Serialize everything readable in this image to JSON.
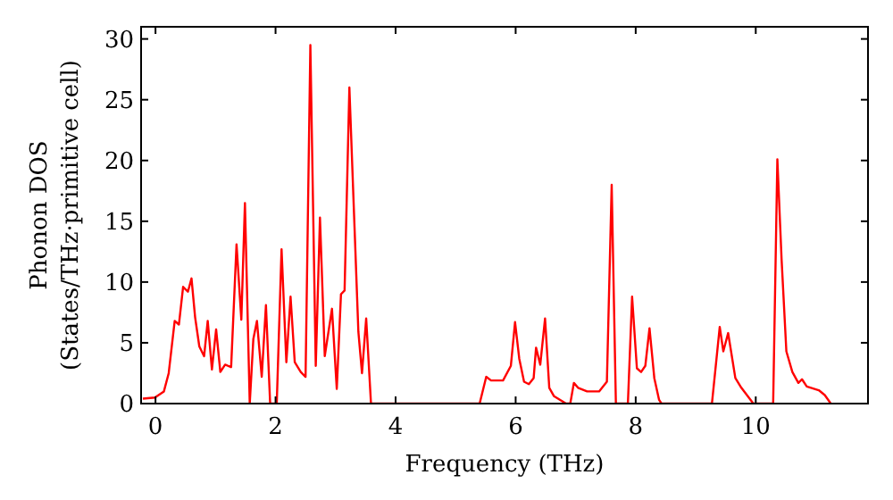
{
  "chart_data": {
    "type": "line",
    "xlabel": "Frequency (THz)",
    "ylabel": "Phonon DOS\n(States/THz·primitive cell)",
    "xlim": [
      -0.24,
      11.87
    ],
    "ylim": [
      0,
      31
    ],
    "xticks": [
      0,
      2,
      4,
      6,
      8,
      10
    ],
    "yticks": [
      0,
      5,
      10,
      15,
      20,
      25,
      30
    ],
    "grid": false,
    "marker": "none",
    "line_style": "solid",
    "series": [
      {
        "color": "#ff0000",
        "x": [
          -0.21,
          -0.01,
          0.14,
          0.22,
          0.32,
          0.39,
          0.46,
          0.54,
          0.6,
          0.66,
          0.73,
          0.81,
          0.87,
          0.94,
          1.01,
          1.08,
          1.16,
          1.26,
          1.35,
          1.43,
          1.49,
          1.57,
          1.63,
          1.69,
          1.77,
          1.84,
          1.91,
          2.02,
          2.1,
          2.18,
          2.25,
          2.32,
          2.42,
          2.5,
          2.58,
          2.67,
          2.74,
          2.82,
          2.94,
          3.02,
          3.09,
          3.15,
          3.23,
          3.38,
          3.44,
          3.51,
          3.59,
          5.4,
          5.51,
          5.59,
          5.79,
          5.92,
          5.99,
          6.06,
          6.14,
          6.22,
          6.3,
          6.34,
          6.41,
          6.49,
          6.56,
          6.64,
          6.84,
          6.91,
          6.97,
          7.04,
          7.19,
          7.39,
          7.52,
          7.6,
          7.67,
          7.87,
          7.94,
          8.02,
          8.09,
          8.16,
          8.23,
          8.31,
          8.39,
          8.43,
          9.27,
          9.4,
          9.46,
          9.54,
          9.66,
          9.76,
          9.96,
          10.29,
          10.36,
          10.43,
          10.51,
          10.61,
          10.71,
          10.77,
          10.85,
          11.05,
          11.15,
          11.25
        ],
        "values": [
          0.4,
          0.5,
          1.0,
          2.5,
          6.8,
          6.5,
          9.6,
          9.2,
          10.3,
          7.1,
          4.7,
          3.9,
          6.8,
          2.8,
          6.1,
          2.6,
          3.2,
          3.0,
          13.1,
          6.9,
          16.5,
          0,
          5.3,
          6.8,
          2.2,
          8.1,
          0,
          0,
          12.7,
          3.4,
          8.8,
          3.4,
          2.6,
          2.2,
          29.5,
          3.1,
          15.3,
          3.9,
          7.8,
          1.2,
          9.0,
          9.3,
          26.0,
          5.9,
          2.5,
          7.0,
          0,
          0,
          2.2,
          1.9,
          1.9,
          3.1,
          6.7,
          3.7,
          1.8,
          1.6,
          2.1,
          4.6,
          3.2,
          7.0,
          1.3,
          0.6,
          0,
          0,
          1.7,
          1.3,
          1.0,
          1.0,
          1.8,
          18.0,
          0,
          0,
          8.8,
          2.9,
          2.6,
          3.1,
          6.2,
          2.1,
          0.3,
          0,
          0,
          6.3,
          4.3,
          5.8,
          2.1,
          1.3,
          0,
          0,
          20.1,
          11.9,
          4.3,
          2.6,
          1.7,
          2.0,
          1.4,
          1.1,
          0.7,
          0
        ]
      }
    ]
  }
}
